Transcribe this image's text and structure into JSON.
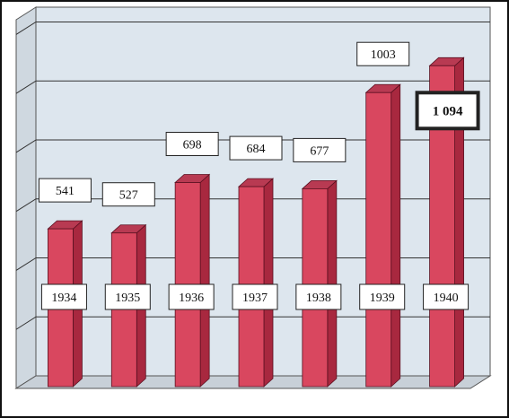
{
  "chart_data": {
    "type": "bar",
    "categories": [
      "1934",
      "1935",
      "1936",
      "1937",
      "1938",
      "1939",
      "1940"
    ],
    "values": [
      541,
      527,
      698,
      684,
      677,
      1003,
      1094
    ],
    "value_labels": [
      "541",
      "527",
      "698",
      "684",
      "677",
      "1003",
      "1 094"
    ],
    "highlighted_index": 6,
    "title": "",
    "xlabel": "",
    "ylabel": "",
    "ylim": [
      0,
      1250
    ],
    "grid": true,
    "three_d": true
  },
  "colors": {
    "background": "#ffffff",
    "wall": "#dde6ee",
    "floor": "#c8d0d8",
    "bar_front": "#d9475f",
    "bar_side": "#a8283f",
    "bar_top": "#b83a52",
    "grid_line": "#333333",
    "label_box": "#ffffff",
    "label_border": "#222222"
  }
}
